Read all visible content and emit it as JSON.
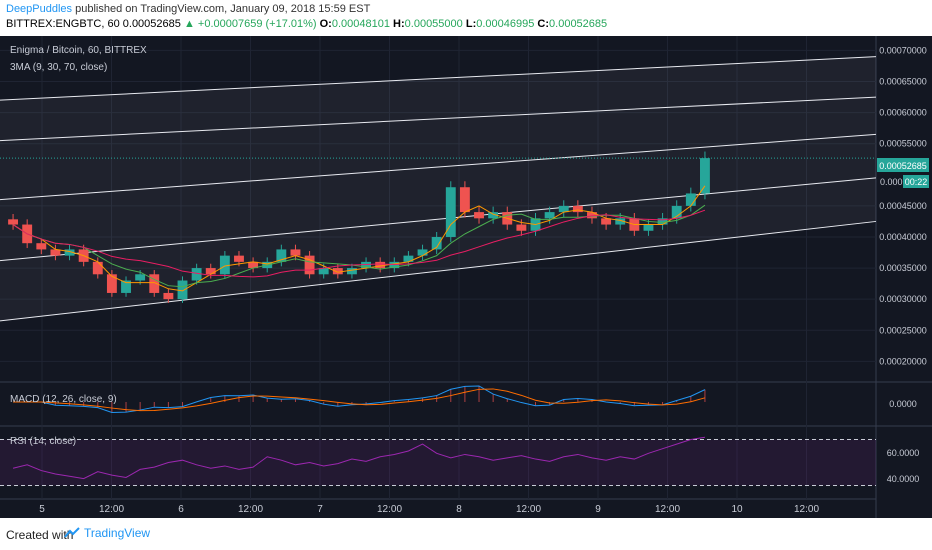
{
  "header": {
    "author": "DeepPuddles",
    "published": "published on TradingView.com, January 09, 2018 15:59 EST",
    "symbol": "BITTREX:ENGBTC, 60",
    "last": "0.00052685",
    "change": "+0.00007659 (+17.01%)",
    "open_label": "O:",
    "open": "0.00048101",
    "high_label": "H:",
    "high": "0.00055000",
    "low_label": "L:",
    "low": "0.00046995",
    "close_label": "C:",
    "close": "0.00052685"
  },
  "main_pane": {
    "title": "Enigma / Bitcoin, 60, BITTREX",
    "indicator": "3MA (9, 30, 70, close)",
    "last_price_tag": "0.00052685",
    "countdown": "00:22",
    "countdown_prefix": "0.000"
  },
  "macd_pane": {
    "label": "MACD (12, 26, close, 9)",
    "axis_label": "0.0000"
  },
  "rsi_pane": {
    "label": "RSI (14, close)",
    "axis_labels": [
      "60.0000",
      "40.0000"
    ]
  },
  "footer": {
    "created": "Created with",
    "brand": "TradingView"
  },
  "colors": {
    "bg": "#131722",
    "up": "#26a69a",
    "down": "#ef5350",
    "ma_fast": "#ff9800",
    "ma_mid": "#4caf50",
    "ma_slow": "#e91e63",
    "macd": "#2196f3",
    "signal": "#ff6d00",
    "rsi": "#9c27b0",
    "price_line": "#26a69a"
  },
  "chart_data": {
    "type": "line",
    "y_ticks": [
      "0.00070000",
      "0.00065000",
      "0.00060000",
      "0.00055000",
      "0.00045000",
      "0.00040000",
      "0.00035000",
      "0.00030000",
      "0.00025000",
      "0.00020000"
    ],
    "x_ticks": [
      "5",
      "12:00",
      "6",
      "12:00",
      "7",
      "12:00",
      "8",
      "12:00",
      "9",
      "12:00",
      "10",
      "12:00"
    ],
    "ylim": [
      0.00017,
      0.00072
    ],
    "price_series": {
      "name": "ENGBTC close",
      "values": [
        0.00042,
        0.00039,
        0.00038,
        0.00037,
        0.00038,
        0.00036,
        0.00034,
        0.00031,
        0.00033,
        0.00034,
        0.00031,
        0.0003,
        0.00033,
        0.00035,
        0.00034,
        0.00037,
        0.00036,
        0.00035,
        0.00036,
        0.00038,
        0.00037,
        0.00034,
        0.00035,
        0.00034,
        0.00035,
        0.00036,
        0.00035,
        0.00036,
        0.00037,
        0.00038,
        0.0004,
        0.00048,
        0.00044,
        0.00043,
        0.00044,
        0.00042,
        0.00041,
        0.00043,
        0.00044,
        0.00045,
        0.00044,
        0.00043,
        0.00042,
        0.00043,
        0.00041,
        0.00042,
        0.00043,
        0.00045,
        0.00047,
        0.00052685
      ]
    },
    "channel_lines_y_at_start": [
      0.000265,
      0.000362,
      0.00046,
      0.000555,
      0.00062
    ],
    "channel_lines_y_at_end": [
      0.000425,
      0.000495,
      0.000565,
      0.000625,
      0.00069
    ],
    "rsi_series": {
      "values": [
        45,
        48,
        43,
        40,
        38,
        36,
        42,
        39,
        37,
        44,
        46,
        50,
        52,
        48,
        45,
        47,
        44,
        46,
        55,
        52,
        48,
        50,
        47,
        49,
        53,
        51,
        55,
        57,
        60,
        66,
        58,
        54,
        57,
        55,
        52,
        54,
        56,
        53,
        51,
        55,
        57,
        54,
        52,
        55,
        53,
        58,
        62,
        66,
        70,
        72
      ]
    }
  }
}
